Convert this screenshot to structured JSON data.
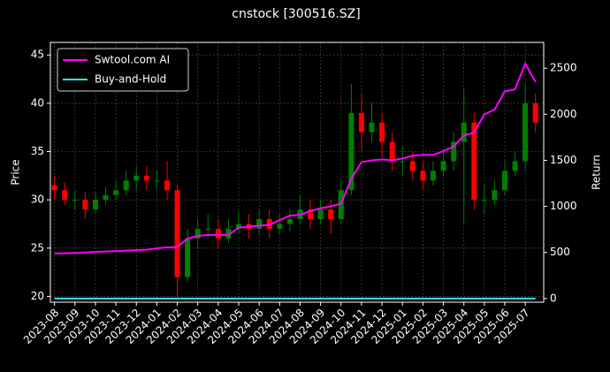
{
  "chart_data": {
    "type": "candlestick",
    "title": "cnstock [300516.SZ]",
    "ylabel": "Price",
    "y2label": "Return",
    "up_color": "#008000",
    "down_color": "#ff0000",
    "grid": true,
    "legend": "upper left",
    "x": [
      0,
      0.5,
      1,
      1.5,
      2,
      2.5,
      3,
      3.5,
      4,
      4.5,
      5,
      5.5,
      6,
      6.5,
      7,
      7.5,
      8,
      8.5,
      9,
      9.5,
      10,
      10.5,
      11,
      11.5,
      12,
      12.5,
      13,
      13.5,
      14,
      14.5,
      15,
      15.5,
      16,
      16.5,
      17,
      17.5,
      18,
      18.5,
      19,
      19.5,
      20,
      20.5,
      21,
      21.5,
      22,
      22.5,
      23,
      23.5
    ],
    "open": [
      31.5,
      31,
      30,
      30,
      29,
      30,
      30.5,
      31,
      32,
      32.5,
      32,
      32,
      31,
      22,
      26,
      27,
      27,
      26,
      27,
      27.5,
      27,
      28,
      27,
      27.5,
      28,
      29,
      28,
      29,
      28,
      31,
      39,
      37,
      38,
      36,
      34,
      34,
      33,
      32,
      33,
      34,
      36,
      38,
      30,
      30,
      31,
      33,
      34,
      40
    ],
    "high": [
      32.5,
      31.8,
      31,
      30.8,
      30.8,
      31.3,
      32,
      33,
      33.5,
      33.5,
      33,
      34,
      31.5,
      27,
      28,
      28.5,
      28,
      28,
      28.8,
      28.5,
      29,
      29,
      28.5,
      29,
      30.5,
      30,
      30,
      30,
      32,
      42,
      41,
      40,
      39,
      37,
      35.5,
      35,
      34,
      34,
      35,
      37,
      41.5,
      39,
      31.5,
      32,
      34,
      35,
      42,
      41
    ],
    "low": [
      30,
      29.5,
      29,
      28,
      28.5,
      29.5,
      30,
      30.5,
      31,
      31,
      31,
      30,
      20,
      21.5,
      25,
      26,
      25,
      25.5,
      26.5,
      26,
      26.5,
      26,
      26.5,
      26.8,
      27.5,
      27,
      27.5,
      26.5,
      27.5,
      30.5,
      35,
      36,
      34.5,
      33,
      32.5,
      32,
      31,
      31.5,
      32.5,
      33,
      27.5,
      29,
      28.5,
      29.5,
      30.5,
      32.5,
      33,
      37
    ],
    "close": [
      31,
      30,
      30,
      29,
      30,
      30.5,
      31,
      32,
      32.5,
      32,
      32,
      31,
      22,
      26,
      27,
      27,
      26,
      27,
      27.5,
      27,
      28,
      27,
      27.5,
      28,
      29,
      28,
      29,
      28,
      31,
      39,
      37,
      38,
      36,
      34,
      34,
      33,
      32,
      33,
      34,
      36,
      38,
      30,
      30,
      31,
      33,
      34,
      40,
      38
    ],
    "series": [
      {
        "name": "Swtool.com AI",
        "color": "#ff00ff",
        "type": "line",
        "axis": "y2",
        "values": [
          490,
          490,
          495,
          500,
          505,
          510,
          515,
          520,
          525,
          530,
          545,
          555,
          560,
          650,
          680,
          690,
          690,
          690,
          770,
          780,
          790,
          800,
          850,
          900,
          910,
          950,
          980,
          1000,
          1030,
          1300,
          1480,
          1500,
          1510,
          1500,
          1520,
          1550,
          1560,
          1560,
          1600,
          1650,
          1770,
          1800,
          2000,
          2050,
          2250,
          2270,
          2550,
          2350
        ]
      },
      {
        "name": "Buy-and-Hold",
        "color": "#33e6e6",
        "type": "line",
        "axis": "y2",
        "values": [
          0,
          0,
          0,
          0,
          0,
          0,
          0,
          0,
          0,
          0,
          0,
          0,
          0,
          0,
          0,
          0,
          0,
          0,
          0,
          0,
          0,
          0,
          0,
          0,
          0,
          0,
          0,
          0,
          0,
          0,
          0,
          0,
          0,
          0,
          0,
          0,
          0,
          0,
          0,
          0,
          0,
          0,
          0,
          0,
          0,
          0,
          0,
          0
        ]
      }
    ],
    "xlim": [
      -0.2,
      23.9
    ],
    "xticks": [
      {
        "value": 0,
        "label": "2023-08"
      },
      {
        "value": 1,
        "label": "2023-09"
      },
      {
        "value": 2,
        "label": "2023-10"
      },
      {
        "value": 3,
        "label": "2023-11"
      },
      {
        "value": 4,
        "label": "2023-12"
      },
      {
        "value": 5,
        "label": "2024-01"
      },
      {
        "value": 6,
        "label": "2024-02"
      },
      {
        "value": 7,
        "label": "2024-03"
      },
      {
        "value": 8,
        "label": "2024-04"
      },
      {
        "value": 9,
        "label": "2024-05"
      },
      {
        "value": 10,
        "label": "2024-06"
      },
      {
        "value": 11,
        "label": "2024-07"
      },
      {
        "value": 12,
        "label": "2024-08"
      },
      {
        "value": 13,
        "label": "2024-09"
      },
      {
        "value": 14,
        "label": "2024-10"
      },
      {
        "value": 15,
        "label": "2024-11"
      },
      {
        "value": 16,
        "label": "2024-12"
      },
      {
        "value": 17,
        "label": "2025-01"
      },
      {
        "value": 18,
        "label": "2025-02"
      },
      {
        "value": 19,
        "label": "2025-03"
      },
      {
        "value": 20,
        "label": "2025-04"
      },
      {
        "value": 21,
        "label": "2025-05"
      },
      {
        "value": 22,
        "label": "2025-06"
      },
      {
        "value": 23,
        "label": "2025-07"
      }
    ],
    "ylim": [
      19.4,
      46.3
    ],
    "yticks": [
      20,
      25,
      30,
      35,
      40,
      45
    ],
    "y2lim": [
      -40,
      2780
    ],
    "y2ticks": [
      0,
      500,
      1000,
      1500,
      2000,
      2500
    ]
  }
}
